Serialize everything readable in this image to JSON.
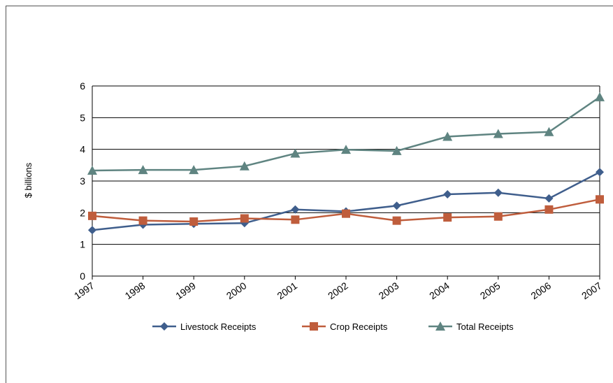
{
  "chart_data": {
    "type": "line",
    "title": "",
    "xlabel": "",
    "ylabel": "$ billions",
    "categories": [
      "1997",
      "1998",
      "1999",
      "2000",
      "2001",
      "2002",
      "2003",
      "2004",
      "2005",
      "2006",
      "2007"
    ],
    "ylim": [
      0,
      6
    ],
    "yticks": [
      "0",
      "1",
      "2",
      "3",
      "4",
      "5",
      "6"
    ],
    "grid": true,
    "legend_position": "bottom",
    "series": [
      {
        "name": "Livestock Receipts",
        "color": "#3f5e8c",
        "marker": "diamond",
        "values": [
          1.45,
          1.62,
          1.65,
          1.67,
          2.1,
          2.04,
          2.22,
          2.58,
          2.63,
          2.45,
          3.28
        ]
      },
      {
        "name": "Crop Receipts",
        "color": "#bf5d3c",
        "marker": "square",
        "values": [
          1.9,
          1.75,
          1.72,
          1.82,
          1.78,
          1.97,
          1.75,
          1.85,
          1.88,
          2.1,
          2.42
        ]
      },
      {
        "name": "Total Receipts",
        "color": "#5f8481",
        "marker": "triangle",
        "values": [
          3.33,
          3.35,
          3.35,
          3.47,
          3.87,
          3.99,
          3.95,
          4.4,
          4.49,
          4.55,
          5.65
        ]
      }
    ]
  }
}
